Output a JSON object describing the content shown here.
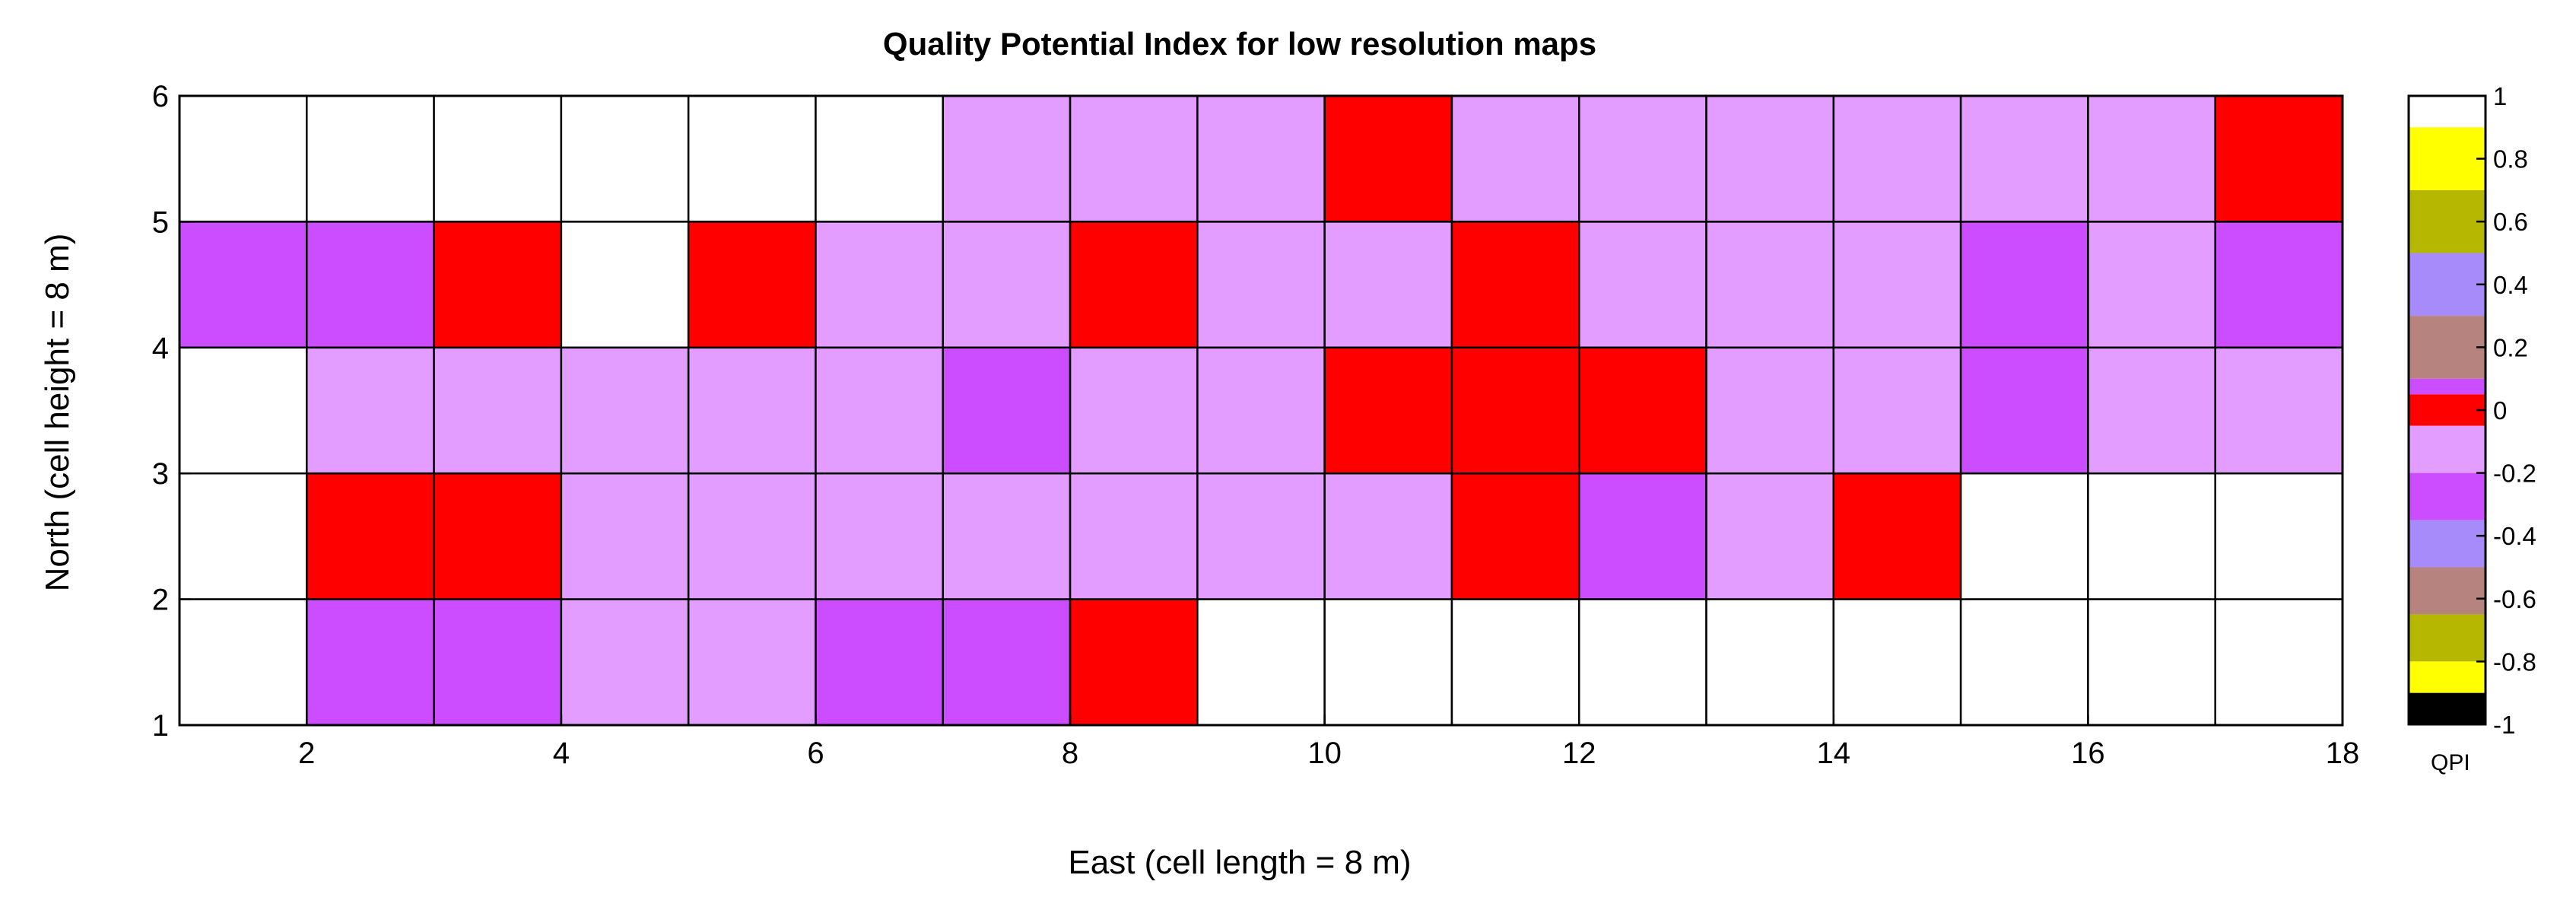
{
  "chart_data": {
    "type": "heatmap",
    "title": "Quality Potential Index for low resolution maps",
    "xlabel": "East (cell length = 8 m)",
    "ylabel": "North (cell height = 8 m)",
    "xlim": [
      1,
      18
    ],
    "ylim": [
      1,
      6
    ],
    "xticks": [
      2,
      4,
      6,
      8,
      10,
      12,
      14,
      16,
      18
    ],
    "yticks": [
      1,
      2,
      3,
      4,
      5,
      6
    ],
    "rows_top_to_bottom": [
      {
        "y_from": 5,
        "y_to": 6,
        "values": [
          1,
          1,
          1,
          1,
          1,
          1,
          -0.1,
          -0.1,
          -0.1,
          0,
          -0.1,
          -0.1,
          -0.1,
          -0.1,
          -0.1,
          -0.1,
          0
        ]
      },
      {
        "y_from": 4,
        "y_to": 5,
        "values": [
          -0.3,
          -0.3,
          0,
          1,
          0,
          -0.1,
          -0.1,
          0,
          -0.1,
          -0.1,
          0,
          -0.1,
          -0.1,
          -0.1,
          -0.3,
          -0.1,
          -0.3
        ]
      },
      {
        "y_from": 3,
        "y_to": 4,
        "values": [
          1,
          -0.1,
          -0.1,
          -0.1,
          -0.1,
          -0.1,
          -0.3,
          -0.1,
          -0.1,
          0,
          0,
          0,
          -0.1,
          -0.1,
          -0.3,
          -0.1,
          -0.1
        ]
      },
      {
        "y_from": 2,
        "y_to": 3,
        "values": [
          1,
          0,
          0,
          -0.1,
          -0.1,
          -0.1,
          -0.1,
          -0.1,
          -0.1,
          -0.1,
          0,
          -0.3,
          -0.1,
          0,
          1,
          1,
          1
        ]
      },
      {
        "y_from": 1,
        "y_to": 2,
        "values": [
          1,
          -0.3,
          -0.3,
          -0.1,
          -0.1,
          -0.3,
          -0.3,
          0,
          1,
          1,
          1,
          1,
          1,
          1,
          1,
          1,
          1
        ]
      }
    ],
    "colorbar": {
      "label": "QPI",
      "range": [
        -1,
        1
      ],
      "ticks": [
        "1",
        "0.8",
        "0.6",
        "0.4",
        "0.2",
        "0",
        "-0.2",
        "-0.4",
        "-0.6",
        "-0.8",
        "-1"
      ],
      "bands_top_to_bottom": [
        {
          "from": 1.0,
          "to": 0.9,
          "color": "#FFFFFF"
        },
        {
          "from": 0.9,
          "to": 0.7,
          "color": "#FFFF00"
        },
        {
          "from": 0.7,
          "to": 0.5,
          "color": "#B5B700"
        },
        {
          "from": 0.5,
          "to": 0.3,
          "color": "#A78BFA"
        },
        {
          "from": 0.3,
          "to": 0.1,
          "color": "#B7837E"
        },
        {
          "from": 0.1,
          "to": 0.05,
          "color": "#CC4DFF"
        },
        {
          "from": 0.05,
          "to": -0.05,
          "color": "#FF0000"
        },
        {
          "from": -0.05,
          "to": -0.2,
          "color": "#E39CFF"
        },
        {
          "from": -0.2,
          "to": -0.35,
          "color": "#CC4DFF"
        },
        {
          "from": -0.35,
          "to": -0.5,
          "color": "#A78BFA"
        },
        {
          "from": -0.5,
          "to": -0.65,
          "color": "#B7837E"
        },
        {
          "from": -0.65,
          "to": -0.8,
          "color": "#B5B700"
        },
        {
          "from": -0.8,
          "to": -0.9,
          "color": "#FFFF00"
        },
        {
          "from": -0.9,
          "to": -1.0,
          "color": "#000000"
        }
      ]
    },
    "cell_colors": {
      "1": "#FFFFFF",
      "0": "#FF0000",
      "-0.1": "#E39CFF",
      "-0.3": "#CC4DFF"
    }
  }
}
